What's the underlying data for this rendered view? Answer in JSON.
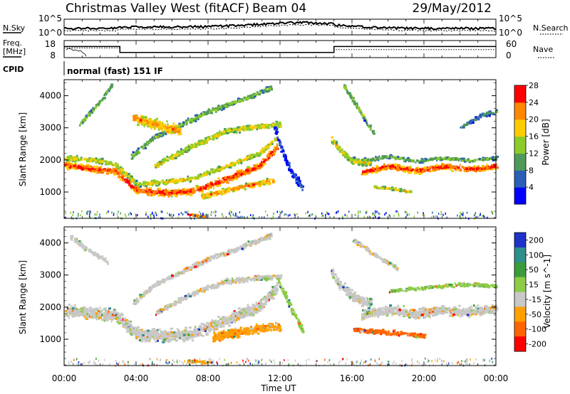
{
  "header": {
    "station": "Christmas Valley West (fitACF)",
    "beam": "Beam 04",
    "date": "29/May/2012"
  },
  "noise_panel": {
    "left_label": "N.Sky",
    "right_label": "N.Search",
    "left_ticks": [
      "10^5",
      "10^0"
    ],
    "right_ticks": [
      "10^5",
      "10^0"
    ]
  },
  "freq_panel": {
    "left_label_line1": "Freq.",
    "left_label_line2": "[MHz]",
    "left_ticks": [
      "18",
      "8"
    ],
    "right_label": "Nave",
    "right_ticks": [
      "60",
      "0"
    ],
    "freq_mhz": [
      {
        "t": 0.0,
        "v": 14.5
      },
      {
        "t": 3.1,
        "v": 11.0
      },
      {
        "t": 15.0,
        "v": 14.5
      },
      {
        "t": 24.0,
        "v": 14.5
      }
    ],
    "nave": [
      {
        "t": 0.0,
        "v": 34
      },
      {
        "t": 3.1,
        "v": 18
      },
      {
        "t": 15.0,
        "v": 28
      },
      {
        "t": 24.0,
        "v": 28
      }
    ]
  },
  "cpid": {
    "label": "CPID",
    "mode": "normal (fast) 151 IF"
  },
  "time_axis": {
    "label": "Time UT",
    "ticks": [
      "00:00",
      "04:00",
      "08:00",
      "12:00",
      "16:00",
      "20:00",
      "00:00"
    ]
  },
  "chart_data": [
    {
      "type": "heatmap",
      "name": "power",
      "ylabel": "Slant Range [km]",
      "xlim": [
        0,
        24
      ],
      "ylim": [
        180,
        4500
      ],
      "yticks": [
        "1000",
        "2000",
        "3000",
        "4000"
      ],
      "colorbar_label": "Power [dB]",
      "colorbar_ticks": [
        "4",
        "8",
        "12",
        "16",
        "20",
        "24",
        "28"
      ],
      "colors": [
        "#0000ff",
        "#2a5fb8",
        "#4f9a58",
        "#8ccc2a",
        "#ffcc00",
        "#ff8800",
        "#ff0000"
      ],
      "bands": [
        {
          "t": [
            0.0,
            1.5,
            2.8,
            4.0,
            5.5,
            7.0,
            9.0,
            10.8,
            11.8
          ],
          "r": [
            1850,
            1700,
            1650,
            1050,
            980,
            1000,
            1400,
            1800,
            2400
          ],
          "w": 300,
          "lvl": 6
        },
        {
          "t": [
            0.0,
            1.5,
            2.8,
            4.0,
            5.5,
            7.0,
            9.0,
            10.8,
            11.8
          ],
          "r": [
            2050,
            2000,
            1850,
            1250,
            1300,
            1400,
            1800,
            2200,
            2700
          ],
          "w": 220,
          "lvl": 4
        },
        {
          "t": [
            5.0,
            7.0,
            9.0,
            11.0,
            12.0
          ],
          "r": [
            1800,
            2400,
            2900,
            3050,
            3100
          ],
          "w": 250,
          "lvl": 4
        },
        {
          "t": [
            3.7,
            5.0,
            6.5,
            8.0,
            10.0,
            11.5
          ],
          "r": [
            2100,
            2700,
            3100,
            3500,
            3900,
            4250
          ],
          "w": 220,
          "lvl": 3
        },
        {
          "t": [
            0.8,
            1.8,
            2.6
          ],
          "r": [
            3100,
            3700,
            4300
          ],
          "w": 180,
          "lvl": 3
        },
        {
          "t": [
            7.6,
            9.0,
            10.2,
            11.6
          ],
          "r": [
            850,
            1050,
            1200,
            1350
          ],
          "w": 230,
          "lvl": 5
        },
        {
          "t": [
            11.6,
            12.0,
            12.5,
            13.2
          ],
          "r": [
            3100,
            2400,
            1700,
            1100
          ],
          "w": 300,
          "lvl": 1
        },
        {
          "t": [
            14.8,
            15.3,
            16.0,
            17.0
          ],
          "r": [
            2650,
            2300,
            1950,
            1900
          ],
          "w": 300,
          "lvl": 4
        },
        {
          "t": [
            16.5,
            18.0,
            19.5,
            21.0,
            22.5,
            24.0
          ],
          "r": [
            1600,
            1800,
            1650,
            1800,
            1700,
            1800
          ],
          "w": 260,
          "lvl": 6
        },
        {
          "t": [
            16.5,
            18.0,
            19.5,
            21.0,
            22.5,
            24.0
          ],
          "r": [
            1980,
            2100,
            1950,
            2050,
            1980,
            2050
          ],
          "w": 150,
          "lvl": 3
        },
        {
          "t": [
            17.2,
            18.2,
            19.2
          ],
          "r": [
            1150,
            1100,
            1000
          ],
          "w": 120,
          "lvl": 4
        },
        {
          "t": [
            6.8,
            7.3,
            7.8
          ],
          "r": [
            300,
            250,
            230
          ],
          "w": 120,
          "lvl": 6
        },
        {
          "t": [
            3.8,
            5.0,
            6.4
          ],
          "r": [
            3300,
            3100,
            2900
          ],
          "w": 450,
          "lvl": 5
        },
        {
          "t": [
            15.5,
            16.3,
            17.2
          ],
          "r": [
            4300,
            3600,
            2800
          ],
          "w": 200,
          "lvl": 3
        },
        {
          "t": [
            22.0,
            23.2,
            24.0
          ],
          "r": [
            3000,
            3400,
            3500
          ],
          "w": 200,
          "lvl": 2
        }
      ]
    },
    {
      "type": "heatmap",
      "name": "velocity",
      "ylabel": "Slant Range [km]",
      "xlim": [
        0,
        24
      ],
      "ylim": [
        180,
        4500
      ],
      "yticks": [
        "1000",
        "2000",
        "3000",
        "4000"
      ],
      "colorbar_label": "Velocity [m s^-1]",
      "colorbar_ticks": [
        "200",
        "100",
        "50",
        "15",
        "-15",
        "-50",
        "-100",
        "-200"
      ],
      "colors": [
        "#1c32c8",
        "#2e8f8f",
        "#3c9c3c",
        "#8ccc46",
        "#c8c8c8",
        "#ffa000",
        "#ff6400",
        "#ff0000"
      ],
      "bands": [
        {
          "t": [
            0.0,
            1.5,
            2.8,
            4.0,
            5.5,
            7.0,
            9.0,
            10.8,
            11.8
          ],
          "r": [
            1900,
            1800,
            1750,
            1150,
            1100,
            1150,
            1600,
            2000,
            2600
          ],
          "w": 520,
          "lvl": 4
        },
        {
          "t": [
            3.8,
            5.0,
            6.5,
            8.0,
            10.0,
            11.5
          ],
          "r": [
            2100,
            2700,
            3100,
            3500,
            3900,
            4250
          ],
          "w": 220,
          "lvl": 4
        },
        {
          "t": [
            5.0,
            7.0,
            9.0,
            11.0,
            12.0
          ],
          "r": [
            1800,
            2400,
            2800,
            2900,
            2950
          ],
          "w": 220,
          "lvl": 4
        },
        {
          "t": [
            8.2,
            9.5,
            11.0,
            12.0
          ],
          "r": [
            1050,
            1200,
            1350,
            1400
          ],
          "w": 380,
          "lvl": 5
        },
        {
          "t": [
            6.8,
            7.6,
            8.2
          ],
          "r": [
            330,
            280,
            260
          ],
          "w": 120,
          "lvl": 5
        },
        {
          "t": [
            11.8,
            12.3,
            12.8,
            13.3
          ],
          "r": [
            2900,
            2300,
            1700,
            1200
          ],
          "w": 300,
          "lvl": 3
        },
        {
          "t": [
            14.8,
            15.3,
            16.0,
            17.0
          ],
          "r": [
            3100,
            2700,
            2300,
            2100
          ],
          "w": 420,
          "lvl": 4
        },
        {
          "t": [
            16.5,
            18.0,
            19.5,
            21.0,
            22.5,
            24.0
          ],
          "r": [
            1750,
            1900,
            1800,
            1900,
            1850,
            1950
          ],
          "w": 420,
          "lvl": 4
        },
        {
          "t": [
            18.0,
            20.0,
            22.0,
            24.0
          ],
          "r": [
            2500,
            2600,
            2700,
            2650
          ],
          "w": 150,
          "lvl": 3
        },
        {
          "t": [
            16.0,
            18.0,
            20.0
          ],
          "r": [
            1300,
            1200,
            1100
          ],
          "w": 200,
          "lvl": 6
        },
        {
          "t": [
            0.3,
            1.2,
            2.4
          ],
          "r": [
            4200,
            3800,
            3400
          ],
          "w": 200,
          "lvl": 4
        },
        {
          "t": [
            16.0,
            17.0,
            18.5
          ],
          "r": [
            4100,
            3700,
            3200
          ],
          "w": 180,
          "lvl": 4
        }
      ]
    }
  ]
}
